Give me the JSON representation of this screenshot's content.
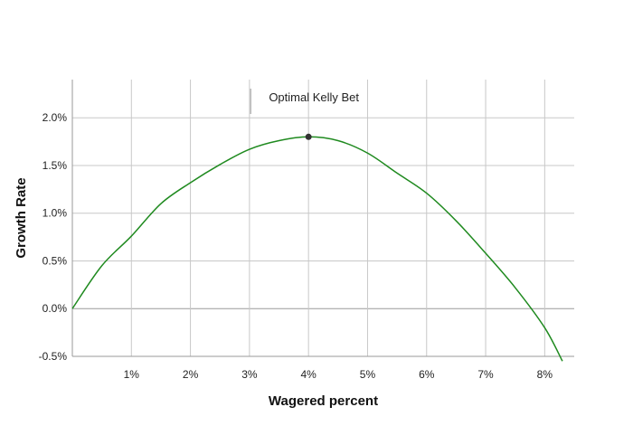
{
  "chart_data": {
    "type": "line",
    "title": "",
    "xlabel": "Wagered percent",
    "ylabel": "Growth Rate",
    "xlim": [
      0,
      8.5
    ],
    "ylim": [
      -0.5,
      2.4
    ],
    "grid": true,
    "x_ticks": [
      {
        "value": 1,
        "label": "1%"
      },
      {
        "value": 2,
        "label": "2%"
      },
      {
        "value": 3,
        "label": "3%"
      },
      {
        "value": 4,
        "label": "4%"
      },
      {
        "value": 5,
        "label": "5%"
      },
      {
        "value": 6,
        "label": "6%"
      },
      {
        "value": 7,
        "label": "7%"
      },
      {
        "value": 8,
        "label": "8%"
      }
    ],
    "y_ticks": [
      {
        "value": -0.5,
        "label": "-0.5%"
      },
      {
        "value": 0.0,
        "label": "0.0%"
      },
      {
        "value": 0.5,
        "label": "0.5%"
      },
      {
        "value": 1.0,
        "label": "1.0%"
      },
      {
        "value": 1.5,
        "label": "1.5%"
      },
      {
        "value": 2.0,
        "label": "2.0%"
      }
    ],
    "series": [
      {
        "color": "#1f8a1f",
        "x": [
          0,
          0.5,
          1,
          1.5,
          2,
          2.5,
          3,
          3.5,
          4,
          4.5,
          5,
          5.5,
          6,
          6.5,
          7,
          7.5,
          8,
          8.3
        ],
        "y": [
          0,
          0.45,
          0.76,
          1.1,
          1.32,
          1.51,
          1.67,
          1.76,
          1.8,
          1.76,
          1.63,
          1.42,
          1.21,
          0.92,
          0.58,
          0.22,
          -0.2,
          -0.55
        ]
      }
    ],
    "annotations": [
      {
        "text": "Optimal Kelly Bet",
        "x": 4.0,
        "y": 1.8,
        "marker_color": "#333333"
      }
    ]
  }
}
